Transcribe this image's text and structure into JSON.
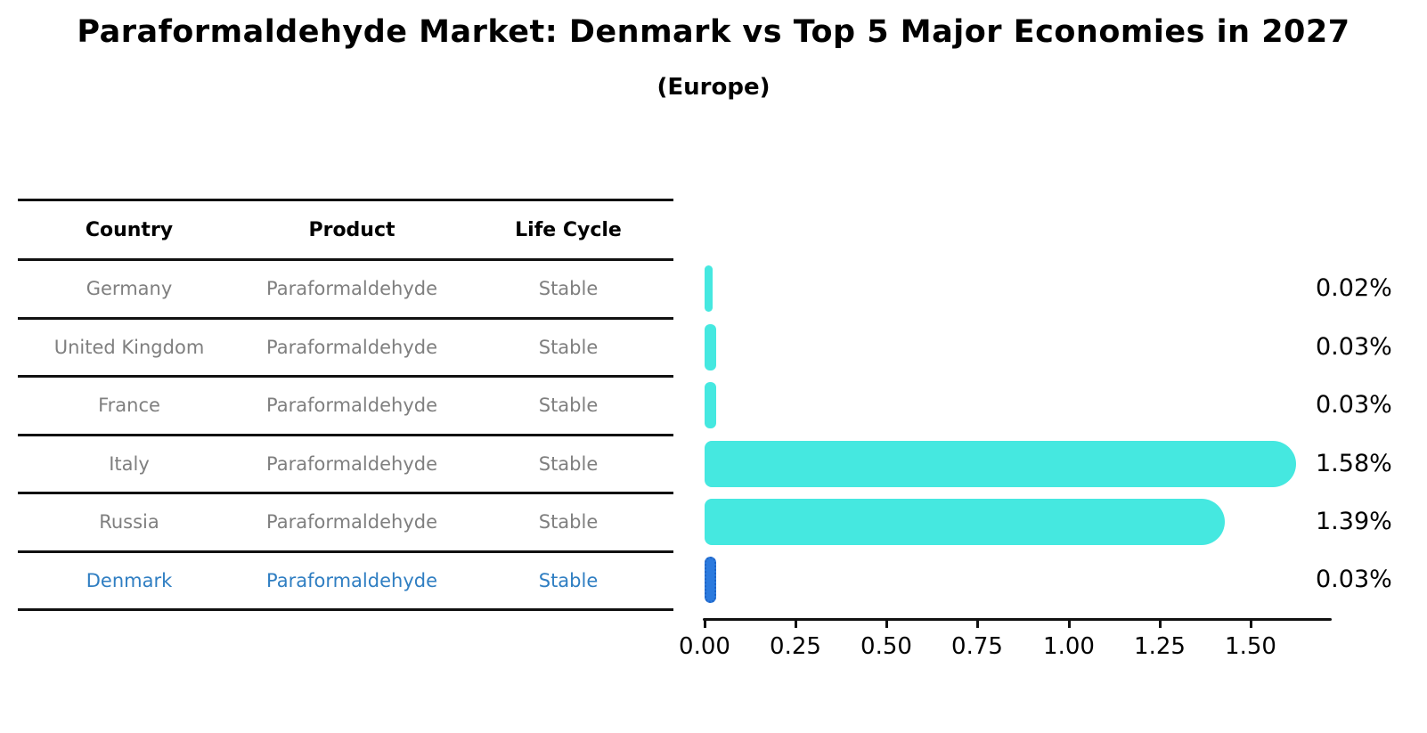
{
  "title": "Paraformaldehyde Market: Denmark vs Top 5 Major Economies in 2027",
  "subtitle": "(Europe)",
  "table": {
    "headers": [
      "Country",
      "Product",
      "Life Cycle"
    ],
    "rows": [
      {
        "country": "Germany",
        "product": "Paraformaldehyde",
        "life_cycle": "Stable",
        "highlight": false
      },
      {
        "country": "United Kingdom",
        "product": "Paraformaldehyde",
        "life_cycle": "Stable",
        "highlight": false
      },
      {
        "country": "France",
        "product": "Paraformaldehyde",
        "life_cycle": "Stable",
        "highlight": false
      },
      {
        "country": "Italy",
        "product": "Paraformaldehyde",
        "life_cycle": "Stable",
        "highlight": false
      },
      {
        "country": "Russia",
        "product": "Paraformaldehyde",
        "life_cycle": "Stable",
        "highlight": false
      },
      {
        "country": "Denmark",
        "product": "Paraformaldehyde",
        "life_cycle": "Stable",
        "highlight": true
      }
    ]
  },
  "chart_data": {
    "type": "bar",
    "orientation": "horizontal",
    "title": "Paraformaldehyde Market: Denmark vs Top 5 Major Economies in 2027",
    "subtitle": "(Europe)",
    "categories": [
      "Germany",
      "United Kingdom",
      "France",
      "Italy",
      "Russia",
      "Denmark"
    ],
    "values": [
      0.02,
      0.03,
      0.03,
      1.58,
      1.39,
      0.03
    ],
    "value_labels": [
      "0.02%",
      "0.03%",
      "0.03%",
      "1.58%",
      "1.39%",
      "0.03%"
    ],
    "x_ticks": [
      "0.00",
      "0.25",
      "0.50",
      "0.75",
      "1.00",
      "1.25",
      "1.50"
    ],
    "x_tick_values": [
      0,
      0.25,
      0.5,
      0.75,
      1.0,
      1.25,
      1.5
    ],
    "xlim": [
      0,
      1.72
    ],
    "grid": false,
    "legend": "none",
    "bar_color": "#45e8e0",
    "highlight_color": "#2b7ade",
    "highlight_category": "Denmark"
  },
  "colors": {
    "bar": "#45e8e0",
    "highlight_bar": "#2b7ade",
    "row_text": "#7f7f7f",
    "highlight_text": "#2f7ec2",
    "axis": "#111111"
  }
}
